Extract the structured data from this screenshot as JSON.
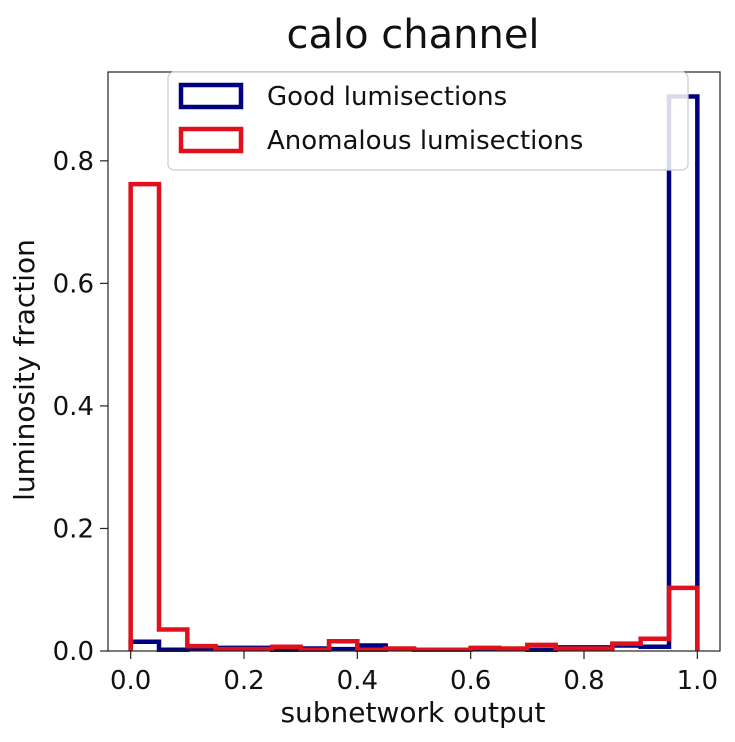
{
  "chart_data": {
    "type": "histogram",
    "title": "calo channel",
    "xlabel": "subnetwork output",
    "ylabel": "luminosity fraction",
    "xlim": [
      -0.04,
      1.04
    ],
    "ylim": [
      0.0,
      0.945
    ],
    "bins": [
      0.0,
      0.05,
      0.1,
      0.15,
      0.2,
      0.25,
      0.3,
      0.35,
      0.4,
      0.45,
      0.5,
      0.55,
      0.6,
      0.65,
      0.7,
      0.75,
      0.8,
      0.85,
      0.9,
      0.95,
      1.0
    ],
    "x_ticks": [
      {
        "value": 0.0,
        "label": "0.0"
      },
      {
        "value": 0.2,
        "label": "0.2"
      },
      {
        "value": 0.4,
        "label": "0.4"
      },
      {
        "value": 0.6,
        "label": "0.6"
      },
      {
        "value": 0.8,
        "label": "0.8"
      },
      {
        "value": 1.0,
        "label": "1.0"
      }
    ],
    "y_ticks": [
      {
        "value": 0.0,
        "label": "0.0"
      },
      {
        "value": 0.2,
        "label": "0.2"
      },
      {
        "value": 0.4,
        "label": "0.4"
      },
      {
        "value": 0.6,
        "label": "0.6"
      },
      {
        "value": 0.8,
        "label": "0.8"
      }
    ],
    "legend_position": "top-center",
    "series": [
      {
        "name": "Good lumisections",
        "color": "#000080",
        "values": [
          0.015,
          0.002,
          0.003,
          0.005,
          0.005,
          0.002,
          0.004,
          0.003,
          0.009,
          0.003,
          0.002,
          0.002,
          0.003,
          0.003,
          0.002,
          0.006,
          0.006,
          0.009,
          0.007,
          0.905
        ]
      },
      {
        "name": "Anomalous lumisections",
        "color": "#e0101c",
        "values": [
          0.762,
          0.035,
          0.008,
          0.003,
          0.003,
          0.007,
          0.002,
          0.016,
          0.002,
          0.004,
          0.002,
          0.002,
          0.005,
          0.004,
          0.01,
          0.004,
          0.004,
          0.012,
          0.02,
          0.103
        ]
      }
    ]
  }
}
